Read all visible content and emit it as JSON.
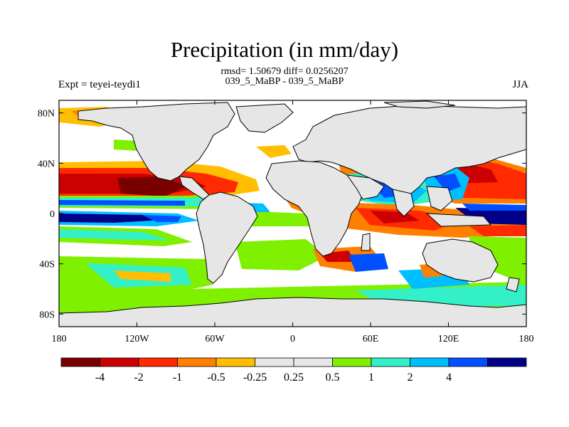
{
  "title": "Precipitation (in mm/day)",
  "stats": {
    "rmsd_line": "rmsd= 1.50679 diff= 0.0256207",
    "experiments_line": "039_5_MaBP - 039_5_MaBP"
  },
  "left_label": "Expt = teyei-teydi1",
  "right_label": "JJA",
  "map": {
    "projection": "cylindrical equidistant",
    "lon_range": [
      -180,
      180
    ],
    "lat_range": [
      -90,
      90
    ],
    "land_fill_color": "#e6e6e6",
    "coastline_color": "#000000",
    "lon_ticks": [
      {
        "value": -180,
        "label": "180"
      },
      {
        "value": -120,
        "label": "120W"
      },
      {
        "value": -60,
        "label": "60W"
      },
      {
        "value": 0,
        "label": "0"
      },
      {
        "value": 60,
        "label": "60E"
      },
      {
        "value": 120,
        "label": "120E"
      },
      {
        "value": 180,
        "label": "180"
      }
    ],
    "lat_ticks": [
      {
        "value": 80,
        "label": "80N"
      },
      {
        "value": 40,
        "label": "40N"
      },
      {
        "value": 0,
        "label": "0"
      },
      {
        "value": -40,
        "label": "40S"
      },
      {
        "value": -80,
        "label": "80S"
      }
    ]
  },
  "colorbar": {
    "colors": [
      "#7a0000",
      "#cc0000",
      "#ff2a00",
      "#ff7f00",
      "#ffbf00",
      "#e6e6e6",
      "#e6e6e6",
      "#7ff000",
      "#33f0c8",
      "#00bfff",
      "#0050ff",
      "#000088"
    ],
    "boundaries": [
      -4,
      -2,
      -1,
      -0.5,
      -0.25,
      0.25,
      0.5,
      1,
      2,
      4
    ],
    "labels": [
      "-4",
      "-2",
      "-1",
      "-0.5",
      "-0.25",
      "0.25",
      "0.5",
      "1",
      "2",
      "4"
    ]
  }
}
